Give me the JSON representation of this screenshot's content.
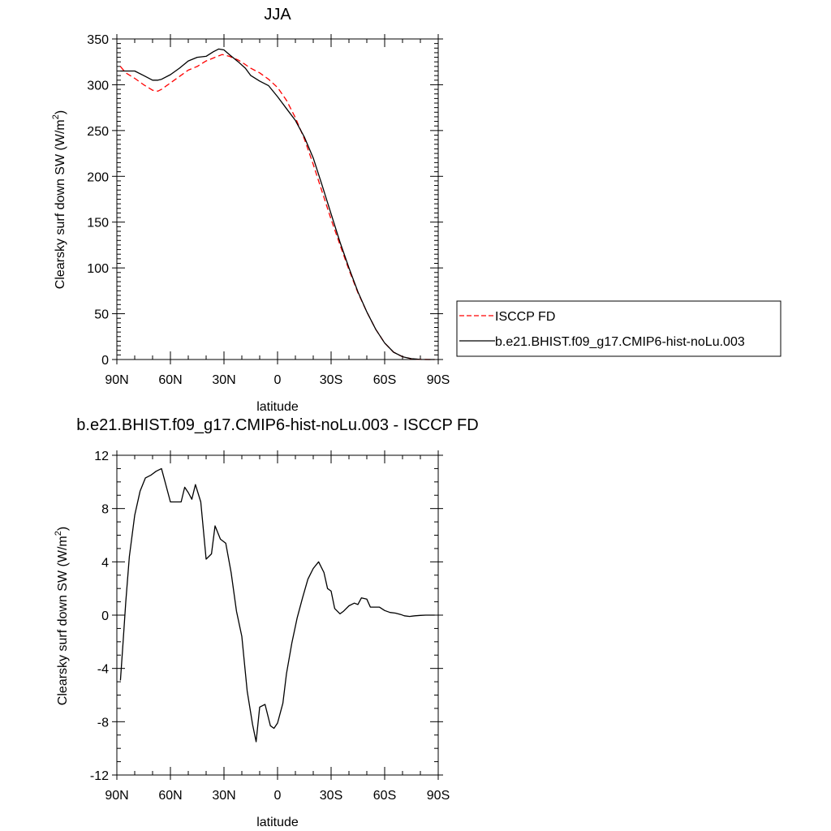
{
  "colors": {
    "model": "#000000",
    "obs": "#ff0000"
  },
  "chart_data": [
    {
      "type": "line",
      "title": "JJA",
      "xlabel": "latitude",
      "ylabel_main": "Clearsky surf down SW (W/m",
      "ylabel_sup": "2",
      "ylabel_close": ")",
      "xlim": [
        90,
        -90
      ],
      "ylim": [
        0,
        350
      ],
      "xticks": [
        {
          "v": 90,
          "label": "90N"
        },
        {
          "v": 60,
          "label": "60N"
        },
        {
          "v": 30,
          "label": "30N"
        },
        {
          "v": 0,
          "label": "0"
        },
        {
          "v": -30,
          "label": "30S"
        },
        {
          "v": -60,
          "label": "60S"
        },
        {
          "v": -90,
          "label": "90S"
        }
      ],
      "yticks": [
        {
          "v": 0,
          "label": "0"
        },
        {
          "v": 50,
          "label": "50"
        },
        {
          "v": 100,
          "label": "100"
        },
        {
          "v": 150,
          "label": "150"
        },
        {
          "v": 200,
          "label": "200"
        },
        {
          "v": 250,
          "label": "250"
        },
        {
          "v": 300,
          "label": "300"
        },
        {
          "v": 350,
          "label": "350"
        }
      ],
      "legend": {
        "placement": "right",
        "entries": [
          {
            "label": "ISCCP FD",
            "style": "dashed",
            "color": "#ff0000"
          },
          {
            "label": "b.e21.BHIST.f09_g17.CMIP6-hist-noLu.003",
            "style": "solid",
            "color": "#000000"
          }
        ]
      },
      "series": [
        {
          "name": "ISCCP FD",
          "style": "dashed",
          "color": "#ff0000",
          "x": [
            88,
            85,
            80,
            75,
            70,
            67,
            65,
            60,
            55,
            50,
            45,
            40,
            35,
            31,
            27,
            22,
            18,
            15,
            10,
            5,
            0,
            -5,
            -10,
            -15,
            -20,
            -25,
            -30,
            -35,
            -40,
            -45,
            -50,
            -55,
            -60,
            -65,
            -70,
            -75,
            -80,
            -85,
            -88
          ],
          "y": [
            320,
            313,
            307,
            300,
            294,
            293,
            295,
            302,
            309,
            316,
            320,
            326,
            330,
            333,
            331,
            327,
            322,
            318,
            313,
            306,
            297,
            283,
            264,
            241,
            213,
            183,
            153,
            125,
            98,
            73,
            52,
            33,
            18,
            8,
            3,
            0.8,
            0.1,
            0,
            0
          ]
        },
        {
          "name": "b.e21.BHIST.f09_g17.CMIP6-hist-noLu.003",
          "style": "solid",
          "color": "#000000",
          "x": [
            88,
            85,
            80,
            75,
            70,
            67,
            65,
            60,
            55,
            50,
            45,
            40,
            36,
            33,
            30,
            27,
            22,
            18,
            15,
            10,
            5,
            0,
            -5,
            -10,
            -15,
            -20,
            -25,
            -30,
            -35,
            -40,
            -45,
            -50,
            -55,
            -60,
            -65,
            -70,
            -75,
            -80,
            -85,
            -88
          ],
          "y": [
            315,
            315,
            315,
            310,
            305,
            305,
            306,
            311,
            318,
            326,
            330,
            331,
            336,
            339,
            338,
            333,
            325,
            318,
            310,
            304,
            299,
            287,
            274,
            261,
            243,
            220,
            190,
            159,
            128,
            100,
            74,
            52,
            33,
            18,
            8,
            3,
            0.9,
            0.1,
            0,
            0
          ]
        }
      ]
    },
    {
      "type": "line",
      "title": "b.e21.BHIST.f09_g17.CMIP6-hist-noLu.003 - ISCCP FD",
      "xlabel": "latitude",
      "ylabel_main": "Clearsky surf down SW (W/m",
      "ylabel_sup": "2",
      "ylabel_close": ")",
      "xlim": [
        90,
        -90
      ],
      "ylim": [
        -12,
        12
      ],
      "xticks": [
        {
          "v": 90,
          "label": "90N"
        },
        {
          "v": 60,
          "label": "60N"
        },
        {
          "v": 30,
          "label": "30N"
        },
        {
          "v": 0,
          "label": "0"
        },
        {
          "v": -30,
          "label": "30S"
        },
        {
          "v": -60,
          "label": "60S"
        },
        {
          "v": -90,
          "label": "90S"
        }
      ],
      "yticks": [
        {
          "v": -12,
          "label": "-12"
        },
        {
          "v": -8,
          "label": "-8"
        },
        {
          "v": -4,
          "label": "-4"
        },
        {
          "v": 0,
          "label": "0"
        },
        {
          "v": 4,
          "label": "4"
        },
        {
          "v": 8,
          "label": "8"
        },
        {
          "v": 12,
          "label": "12"
        }
      ],
      "series": [
        {
          "style": "solid",
          "color": "#000000",
          "x": [
            88,
            86.5,
            85,
            83,
            80,
            77,
            74,
            71,
            68,
            65,
            63,
            60,
            57,
            54,
            52,
            50,
            48,
            46,
            43,
            40,
            37,
            35,
            32,
            29,
            26,
            23,
            20,
            17,
            14,
            12,
            10,
            7,
            4,
            2,
            0,
            -3,
            -5,
            -8,
            -11,
            -14,
            -17,
            -20,
            -23,
            -26,
            -28,
            -30,
            -32,
            -35,
            -37,
            -40,
            -43,
            -45,
            -47,
            -50,
            -52,
            -54,
            -57,
            -60,
            -63,
            -66,
            -69,
            -71,
            -74,
            -77,
            -80,
            -83,
            -86,
            -88
          ],
          "y": [
            -4.9,
            -2,
            1,
            4.4,
            7.5,
            9.3,
            10.3,
            10.5,
            10.8,
            11,
            10,
            8.5,
            8.5,
            8.5,
            9.6,
            9.2,
            8.7,
            9.8,
            8.5,
            4.2,
            4.6,
            6.7,
            5.7,
            5.4,
            3.2,
            0.3,
            -1.6,
            -5.7,
            -8.2,
            -9.5,
            -6.9,
            -6.7,
            -8.3,
            -8.5,
            -8.1,
            -6.6,
            -4.4,
            -2.1,
            -0.2,
            1.3,
            2.7,
            3.5,
            4,
            3.2,
            2,
            1.8,
            0.5,
            0.1,
            0.3,
            0.7,
            0.9,
            0.8,
            1.3,
            1.2,
            0.6,
            0.6,
            0.6,
            0.35,
            0.2,
            0.15,
            0.05,
            -0.05,
            -0.1,
            -0.05,
            -0.02,
            0,
            0,
            0
          ]
        }
      ]
    }
  ]
}
